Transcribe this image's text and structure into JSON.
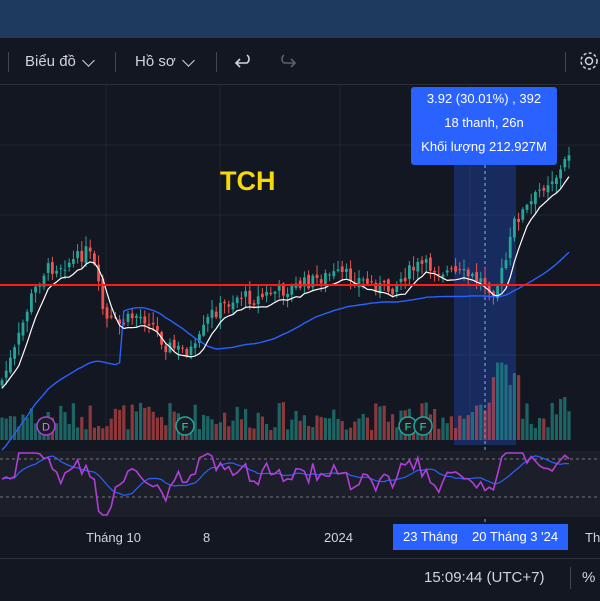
{
  "toolbar": {
    "chart_label": "Biểu đồ",
    "profile_label": "Hồ sơ",
    "undo_icon": "undo-icon",
    "redo_icon": "redo-icon",
    "settings_icon": "gear-icon"
  },
  "symbol": "TCH",
  "tooltip": {
    "line1": "3.92 (30.01%) , 392",
    "line2": "18 thanh, 26n",
    "line3": "Khối lượng 212.927M"
  },
  "axis": {
    "ticks": [
      "Tháng 10",
      "8",
      "2024",
      "Th"
    ],
    "start_label": "23 Tháng",
    "end_label": "20 Tháng 3 '24"
  },
  "events": [
    "D",
    "F",
    "F",
    "F"
  ],
  "status": {
    "clock": "15:09:44 (UTC+7)",
    "percent": "%"
  },
  "colors": {
    "background": "#131722",
    "up": "#26a69a",
    "down": "#ef5350",
    "support_line": "#ff0000",
    "ma_fast": "#ffffff",
    "ma_slow": "#2962ff",
    "rsi": "#b03fd6",
    "highlight": "#2962ff",
    "title": "#f5d90a"
  }
}
